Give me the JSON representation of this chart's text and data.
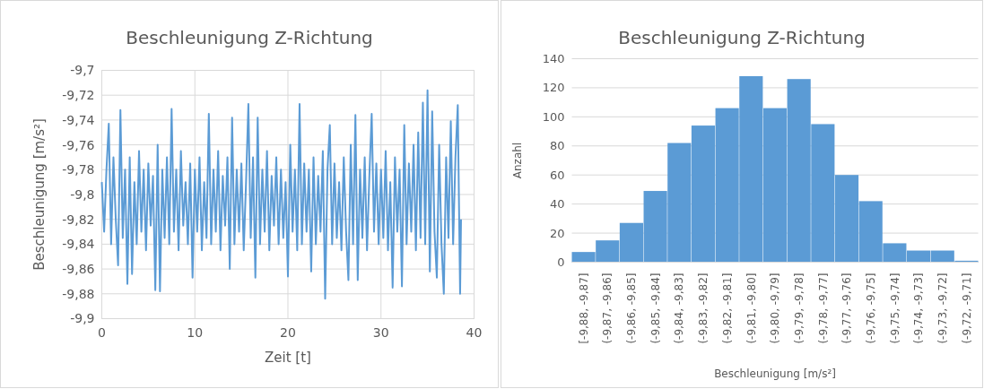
{
  "chart_data": [
    {
      "type": "line",
      "title": "Beschleunigung Z-Richtung",
      "xlabel": "Zeit [t]",
      "ylabel": "Beschleunigung [m/s²]",
      "xlim": [
        0,
        40
      ],
      "xticks": [
        0,
        10,
        20,
        30,
        40
      ],
      "ylim": [
        -9.9,
        -9.7
      ],
      "yticks": [
        {
          "value": -9.9,
          "label": "-9,9"
        },
        {
          "value": -9.88,
          "label": "-9,88"
        },
        {
          "value": -9.86,
          "label": "-9,86"
        },
        {
          "value": -9.84,
          "label": "-9,84"
        },
        {
          "value": -9.82,
          "label": "-9,82"
        },
        {
          "value": -9.8,
          "label": "-9,8"
        },
        {
          "value": -9.78,
          "label": "-9,78"
        },
        {
          "value": -9.76,
          "label": "-9,76"
        },
        {
          "value": -9.74,
          "label": "-9,74"
        },
        {
          "value": -9.72,
          "label": "-9,72"
        },
        {
          "value": -9.7,
          "label": "-9,7"
        }
      ],
      "grid": true,
      "series": [
        {
          "color": "#5b9bd5",
          "x": [
            0,
            0.25,
            0.5,
            0.75,
            1,
            1.25,
            1.5,
            1.75,
            2,
            2.25,
            2.5,
            2.75,
            3,
            3.25,
            3.5,
            3.75,
            4,
            4.25,
            4.5,
            4.75,
            5,
            5.25,
            5.5,
            5.75,
            6,
            6.25,
            6.5,
            6.75,
            7,
            7.25,
            7.5,
            7.75,
            8,
            8.25,
            8.5,
            8.75,
            9,
            9.25,
            9.5,
            9.75,
            10,
            10.25,
            10.5,
            10.75,
            11,
            11.25,
            11.5,
            11.75,
            12,
            12.25,
            12.5,
            12.75,
            13,
            13.25,
            13.5,
            13.75,
            14,
            14.25,
            14.5,
            14.75,
            15,
            15.25,
            15.5,
            15.75,
            16,
            16.25,
            16.5,
            16.75,
            17,
            17.25,
            17.5,
            17.75,
            18,
            18.25,
            18.5,
            18.75,
            19,
            19.25,
            19.5,
            19.75,
            20,
            20.25,
            20.5,
            20.75,
            21,
            21.25,
            21.5,
            21.75,
            22,
            22.25,
            22.5,
            22.75,
            23,
            23.25,
            23.5,
            23.75,
            24,
            24.25,
            24.5,
            24.75,
            25,
            25.25,
            25.5,
            25.75,
            26,
            26.25,
            26.5,
            26.75,
            27,
            27.25,
            27.5,
            27.75,
            28,
            28.25,
            28.5,
            28.75,
            29,
            29.25,
            29.5,
            29.75,
            30,
            30.25,
            30.5,
            30.75,
            31,
            31.25,
            31.5,
            31.75,
            32,
            32.25,
            32.5,
            32.75,
            33,
            33.25,
            33.5,
            33.75,
            34,
            34.25,
            34.5,
            34.75,
            35,
            35.25,
            35.5,
            35.75,
            36,
            36.25,
            36.5,
            36.75,
            37,
            37.25,
            37.5,
            37.75,
            38,
            38.25,
            38.5,
            38.6
          ],
          "values": [
            -9.79,
            -9.83,
            -9.78,
            -9.743,
            -9.84,
            -9.77,
            -9.82,
            -9.857,
            -9.732,
            -9.835,
            -9.78,
            -9.872,
            -9.77,
            -9.864,
            -9.79,
            -9.84,
            -9.765,
            -9.83,
            -9.78,
            -9.845,
            -9.775,
            -9.825,
            -9.785,
            -9.877,
            -9.76,
            -9.878,
            -9.78,
            -9.835,
            -9.77,
            -9.84,
            -9.731,
            -9.83,
            -9.78,
            -9.845,
            -9.765,
            -9.825,
            -9.79,
            -9.84,
            -9.775,
            -9.867,
            -9.78,
            -9.83,
            -9.77,
            -9.845,
            -9.79,
            -9.835,
            -9.735,
            -9.84,
            -9.78,
            -9.83,
            -9.765,
            -9.845,
            -9.785,
            -9.825,
            -9.77,
            -9.86,
            -9.738,
            -9.84,
            -9.78,
            -9.83,
            -9.775,
            -9.845,
            -9.79,
            -9.727,
            -9.835,
            -9.77,
            -9.867,
            -9.738,
            -9.84,
            -9.78,
            -9.83,
            -9.765,
            -9.845,
            -9.785,
            -9.825,
            -9.77,
            -9.84,
            -9.78,
            -9.835,
            -9.79,
            -9.866,
            -9.76,
            -9.83,
            -9.78,
            -9.845,
            -9.727,
            -9.84,
            -9.775,
            -9.83,
            -9.78,
            -9.862,
            -9.77,
            -9.84,
            -9.785,
            -9.83,
            -9.765,
            -9.884,
            -9.78,
            -9.744,
            -9.84,
            -9.775,
            -9.835,
            -9.79,
            -9.845,
            -9.77,
            -9.83,
            -9.869,
            -9.76,
            -9.84,
            -9.736,
            -9.869,
            -9.78,
            -9.835,
            -9.77,
            -9.845,
            -9.785,
            -9.735,
            -9.83,
            -9.775,
            -9.84,
            -9.78,
            -9.835,
            -9.765,
            -9.845,
            -9.79,
            -9.875,
            -9.77,
            -9.83,
            -9.78,
            -9.874,
            -9.744,
            -9.84,
            -9.775,
            -9.83,
            -9.76,
            -9.845,
            -9.75,
            -9.835,
            -9.726,
            -9.84,
            -9.716,
            -9.862,
            -9.733,
            -9.83,
            -9.867,
            -9.76,
            -9.84,
            -9.88,
            -9.77,
            -9.835,
            -9.741,
            -9.84,
            -9.77,
            -9.728,
            -9.88,
            -9.82
          ]
        }
      ]
    },
    {
      "type": "bar",
      "title": "Beschleunigung Z-Richtung",
      "xlabel": "Beschleunigung [m/s²]",
      "ylabel": "Anzahl",
      "categories": [
        "[-9,88, -9,87]",
        "(-9,87, -9,86]",
        "(-9,86, -9,85]",
        "(-9,85, -9,84]",
        "(-9,84, -9,83]",
        "(-9,83, -9,82]",
        "(-9,82, -9,81]",
        "(-9,81, -9,80]",
        "(-9,80, -9,79]",
        "(-9,79, -9,78]",
        "(-9,78, -9,77]",
        "(-9,77, -9,76]",
        "(-9,76, -9,75]",
        "(-9,75, -9,74]",
        "(-9,74, -9,73]",
        "(-9,73, -9,72]",
        "(-9,72, -9,71]"
      ],
      "values": [
        7,
        15,
        27,
        49,
        82,
        94,
        106,
        128,
        106,
        126,
        95,
        60,
        42,
        13,
        8,
        8,
        1
      ],
      "color": "#5b9bd5",
      "ylim": [
        0,
        140
      ],
      "yticks": [
        0,
        20,
        40,
        60,
        80,
        100,
        120,
        140
      ],
      "grid": "y"
    }
  ]
}
